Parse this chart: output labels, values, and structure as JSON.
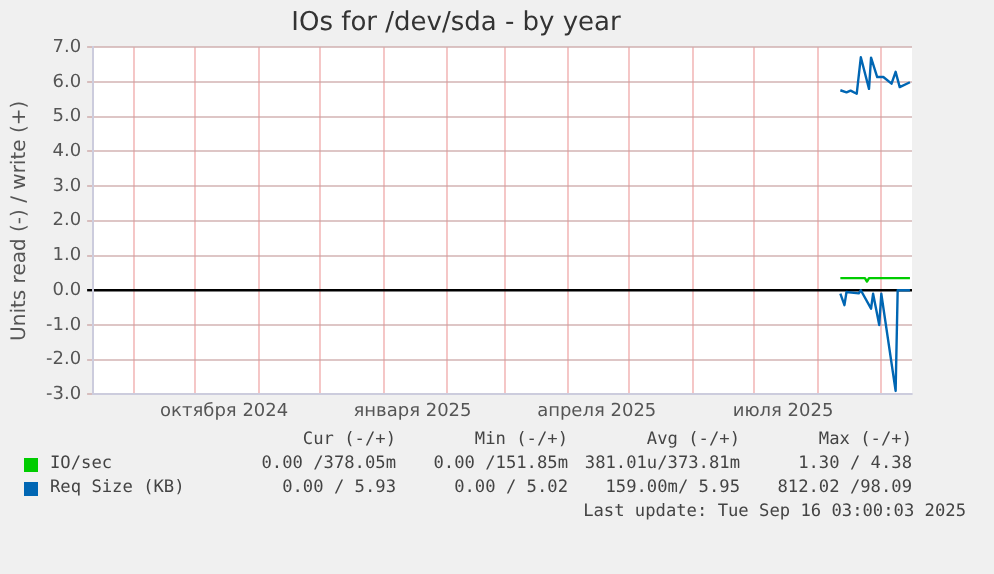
{
  "chart_data": {
    "type": "line",
    "title": "IOs for /dev/sda - by year",
    "ylabel": "Units read (-) / write (+)",
    "xlim": [
      "2024-08-12",
      "2025-09-16"
    ],
    "xticks": [
      {
        "value": "2024-09-01",
        "label": null
      },
      {
        "value": "2024-10-01",
        "label": null
      },
      {
        "value": "2024-10-15",
        "label": "октября 2024"
      },
      {
        "value": "2024-11-01",
        "label": null
      },
      {
        "value": "2024-12-01",
        "label": null
      },
      {
        "value": "2025-01-01",
        "label": null
      },
      {
        "value": "2025-01-15",
        "label": "января 2025"
      },
      {
        "value": "2025-02-01",
        "label": null
      },
      {
        "value": "2025-03-01",
        "label": null
      },
      {
        "value": "2025-04-01",
        "label": null
      },
      {
        "value": "2025-04-15",
        "label": "апреля 2025"
      },
      {
        "value": "2025-05-01",
        "label": null
      },
      {
        "value": "2025-06-01",
        "label": null
      },
      {
        "value": "2025-07-01",
        "label": null
      },
      {
        "value": "2025-07-15",
        "label": "июля 2025"
      },
      {
        "value": "2025-08-01",
        "label": null
      },
      {
        "value": "2025-09-01",
        "label": null
      }
    ],
    "ylim": [
      -3,
      7
    ],
    "yticks": [
      {
        "value": -3,
        "label": "-3.0"
      },
      {
        "value": -2,
        "label": "-2.0"
      },
      {
        "value": -1,
        "label": "-1.0"
      },
      {
        "value": 0,
        "label": "0.0"
      },
      {
        "value": 1,
        "label": "1.0"
      },
      {
        "value": 2,
        "label": "2.0"
      },
      {
        "value": 3,
        "label": "3.0"
      },
      {
        "value": 4,
        "label": "4.0"
      },
      {
        "value": 5,
        "label": "5.0"
      },
      {
        "value": 6,
        "label": "6.0"
      },
      {
        "value": 7,
        "label": "7.0"
      }
    ],
    "grid": true,
    "legend": "bottom",
    "marker": "none",
    "line_style": "solid",
    "series": [
      {
        "name": "IO/sec",
        "color": "#00cc00",
        "x": [
          "2025-08-12",
          "2025-08-24",
          "2025-08-25",
          "2025-08-26",
          "2025-09-15"
        ],
        "values": [
          0.35,
          0.35,
          0.25,
          0.35,
          0.35
        ]
      },
      {
        "name": "Req Size (KB)",
        "color": "#0066b3",
        "x": [
          "2025-08-12",
          "2025-08-15",
          "2025-08-17",
          "2025-08-20",
          "2025-08-22",
          "2025-08-26",
          "2025-08-27",
          "2025-08-30",
          "2025-09-02",
          "2025-09-06",
          "2025-09-08",
          "2025-09-10",
          "2025-09-15"
        ],
        "values": [
          5.76,
          5.7,
          5.75,
          5.66,
          6.71,
          5.8,
          6.7,
          6.14,
          6.14,
          5.95,
          6.29,
          5.85,
          5.99
        ]
      },
      {
        "color": "#0066b3",
        "x": [
          "2025-08-12",
          "2025-08-14",
          "2025-08-15",
          "2025-08-21",
          "2025-08-22",
          "2025-08-27",
          "2025-08-28",
          "2025-08-31",
          "2025-09-01",
          "2025-09-08",
          "2025-09-09",
          "2025-09-15"
        ],
        "values": [
          -0.1,
          -0.43,
          -0.05,
          -0.09,
          0,
          -0.53,
          -0.1,
          -1.0,
          -0.1,
          -2.9,
          0,
          0
        ]
      }
    ],
    "annotations": [
      "Cur (-/+)",
      "Min (-/+)",
      "Avg (-/+)",
      "Max (-/+)",
      "0.00 /378.05m",
      "0.00 /151.85m",
      "381.01u/373.81m",
      "1.30 / 4.38",
      "0.00 / 5.93",
      "0.00 / 5.02",
      "159.00m/ 5.95",
      "812.02 /98.09",
      "Last update: Tue Sep 16 03:00:03 2025"
    ]
  }
}
